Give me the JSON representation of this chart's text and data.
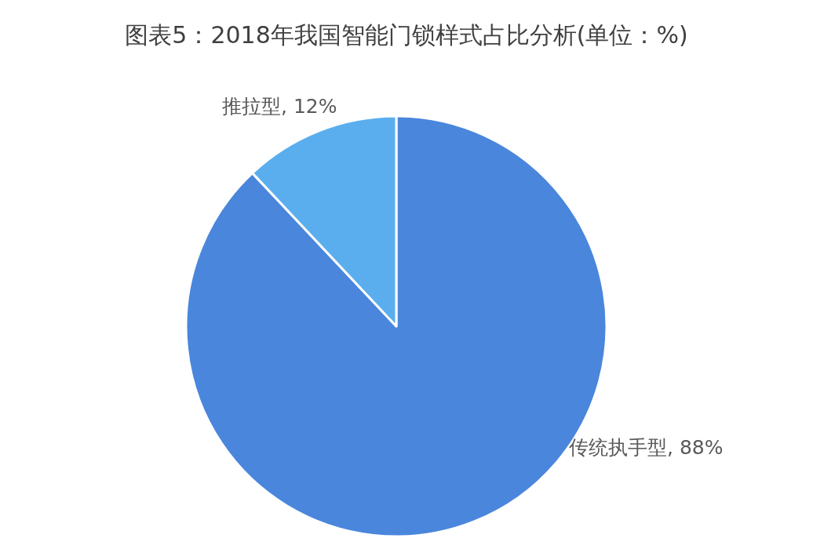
{
  "chart_data": {
    "type": "pie",
    "title": "图表5：2018年我国智能门锁样式占比分析(单位：%)",
    "categories": [
      "传统执手型",
      "推拉型"
    ],
    "values": [
      88,
      12
    ],
    "value_labels": [
      "88%",
      "12%"
    ],
    "colors": [
      "#4a86dc",
      "#5aaeee"
    ],
    "legend": false
  }
}
